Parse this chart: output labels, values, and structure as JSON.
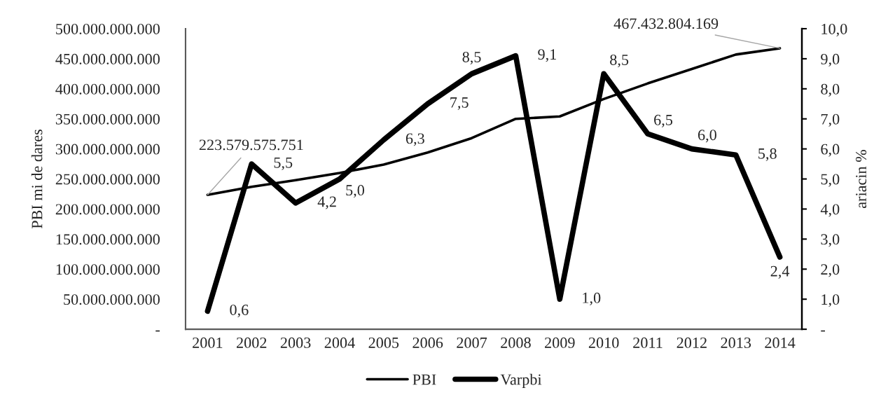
{
  "chart_data": {
    "type": "line",
    "categories": [
      "2001",
      "2002",
      "2003",
      "2004",
      "2005",
      "2006",
      "2007",
      "2008",
      "2009",
      "2010",
      "2011",
      "2012",
      "2013",
      "2014"
    ],
    "ylabel": "PBI mi de dares",
    "y2label": "ariacin %",
    "ylim": [
      0,
      500000000000
    ],
    "yticks": [
      {
        "value": 0,
        "label": "-"
      },
      {
        "value": 50000000000,
        "label": "50.000.000.000"
      },
      {
        "value": 100000000000,
        "label": "100.000.000.000"
      },
      {
        "value": 150000000000,
        "label": "150.000.000.000"
      },
      {
        "value": 200000000000,
        "label": "200.000.000.000"
      },
      {
        "value": 250000000000,
        "label": "250.000.000.000"
      },
      {
        "value": 300000000000,
        "label": "300.000.000.000"
      },
      {
        "value": 350000000000,
        "label": "350.000.000.000"
      },
      {
        "value": 400000000000,
        "label": "400.000.000.000"
      },
      {
        "value": 450000000000,
        "label": "450.000.000.000"
      },
      {
        "value": 500000000000,
        "label": "500.000.000.000"
      }
    ],
    "y2lim": [
      0,
      10
    ],
    "y2ticks": [
      {
        "value": 0,
        "label": "-"
      },
      {
        "value": 1,
        "label": "1,0"
      },
      {
        "value": 2,
        "label": "2,0"
      },
      {
        "value": 3,
        "label": "3,0"
      },
      {
        "value": 4,
        "label": "4,0"
      },
      {
        "value": 5,
        "label": "5,0"
      },
      {
        "value": 6,
        "label": "6,0"
      },
      {
        "value": 7,
        "label": "7,0"
      },
      {
        "value": 8,
        "label": "8,0"
      },
      {
        "value": 9,
        "label": "9,0"
      },
      {
        "value": 10,
        "label": "10,0"
      }
    ],
    "grid": false,
    "legend": "bottom",
    "series": [
      {
        "name": "PBI",
        "color": "#000000",
        "values": [
          223579575751,
          237000000000,
          248000000000,
          260000000000,
          274000000000,
          294000000000,
          318000000000,
          350000000000,
          354000000000,
          383000000000,
          409000000000,
          433000000000,
          457000000000,
          467432804169
        ],
        "value_labels": [
          "223.579.575.751",
          null,
          null,
          null,
          null,
          null,
          null,
          null,
          null,
          null,
          null,
          null,
          null,
          "467.432.804.169"
        ]
      },
      {
        "name": "Varpbi",
        "color": "#000000",
        "axis": "y2",
        "values": [
          0.6,
          5.5,
          4.2,
          5.0,
          6.3,
          7.5,
          8.5,
          9.1,
          1.0,
          8.5,
          6.5,
          6.0,
          5.8,
          2.4
        ],
        "value_labels": [
          "0,6",
          "5,5",
          "4,2",
          "5,0",
          "6,3",
          "7,5",
          "8,5",
          "9,1",
          "1,0",
          "8,5",
          "6,5",
          "6,0",
          "5,8",
          "2,4"
        ]
      }
    ]
  }
}
